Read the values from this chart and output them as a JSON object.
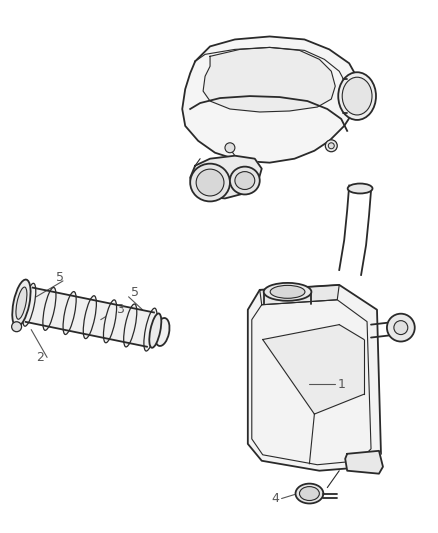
{
  "background_color": "#ffffff",
  "line_color": "#2a2a2a",
  "label_color": "#555555",
  "figsize": [
    4.38,
    5.33
  ],
  "dpi": 100
}
